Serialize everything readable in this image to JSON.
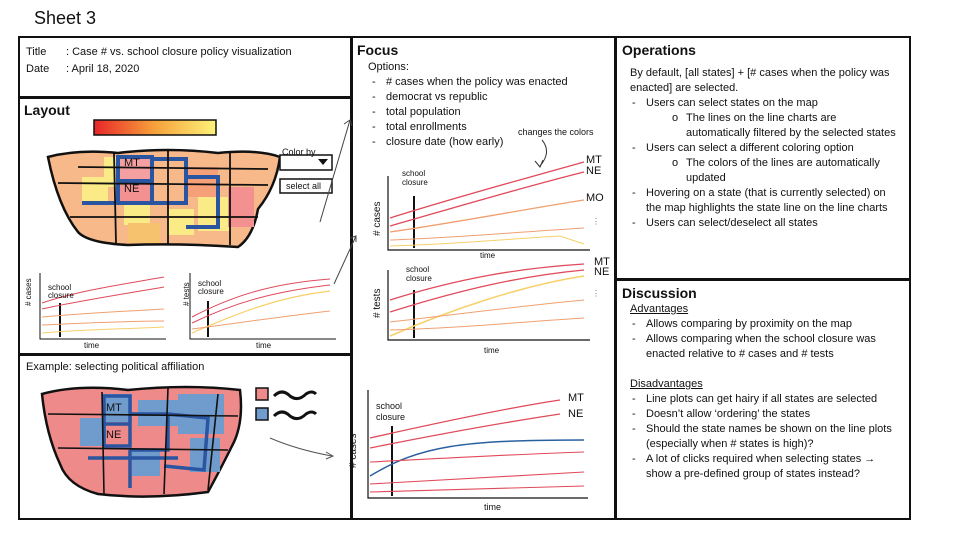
{
  "sheet_title": "Sheet 3",
  "meta": {
    "title_key": "Title",
    "title_value": ": Case # vs. school closure policy visualization",
    "date_key": "Date",
    "date_value": ": April 18, 2020"
  },
  "layout": {
    "heading": "Layout",
    "color_by_label": "Color by",
    "select_all_label": "select all",
    "map_labels": [
      "MT",
      "NE"
    ],
    "chart_left": {
      "ylabel": "# cases",
      "xlabel": "time",
      "marker": "school closure"
    },
    "chart_right": {
      "ylabel": "# tests",
      "xlabel": "time",
      "marker": "school closure"
    }
  },
  "example": {
    "heading": "Example: selecting political affiliation",
    "map_labels": [
      "MT",
      "NE"
    ],
    "chart": {
      "ylabel": "# cases",
      "xlabel": "time",
      "marker": "school closure",
      "series_labels": [
        "MT",
        "NE"
      ]
    },
    "colors": {
      "democrat": "#5b8fc4",
      "republican": "#ef8a8a"
    }
  },
  "focus": {
    "heading": "Focus",
    "options_label": "Options:",
    "options": [
      "# cases when the policy was enacted",
      "democrat vs republic",
      "total population",
      "total enrollments",
      "closure date (how early)"
    ],
    "annotation": "changes the colors",
    "chart_cases": {
      "ylabel": "# cases",
      "xlabel": "time",
      "marker": "school closure",
      "series_labels": [
        "MT",
        "NE",
        "MO"
      ]
    },
    "chart_tests": {
      "ylabel": "# tests",
      "xlabel": "time",
      "marker": "school closure",
      "series_labels": [
        "MT",
        "NE"
      ]
    }
  },
  "operations": {
    "heading": "Operations",
    "intro": "By default, [all states] + [# cases when the policy was enacted] are selected.",
    "items": [
      {
        "text": "Users can select states on the map",
        "sub": [
          "The lines on the line charts are automatically filtered by the selected states"
        ]
      },
      {
        "text": "Users can select a different coloring option",
        "sub": [
          "The colors of the lines are automatically updated"
        ]
      },
      {
        "text": "Hovering on a state (that is currently selected) on the map highlights the state line on the line charts",
        "sub": []
      },
      {
        "text": "Users can select/deselect all states",
        "sub": []
      }
    ]
  },
  "discussion": {
    "heading": "Discussion",
    "advantages_label": "Advantages",
    "advantages": [
      "Allows comparing by proximity on the map",
      "Allows comparing when the school closure was enacted relative to # cases and # tests"
    ],
    "disadvantages_label": "Disadvantages",
    "disadvantages": [
      "Line plots can get hairy if all states are selected",
      "Doesn’t allow ‘ordering’ the states",
      "Should the state names be shown on the line plots (especially when # states is high)?",
      "A lot of clicks required when selecting states → show a pre-defined group of states instead?"
    ]
  }
}
